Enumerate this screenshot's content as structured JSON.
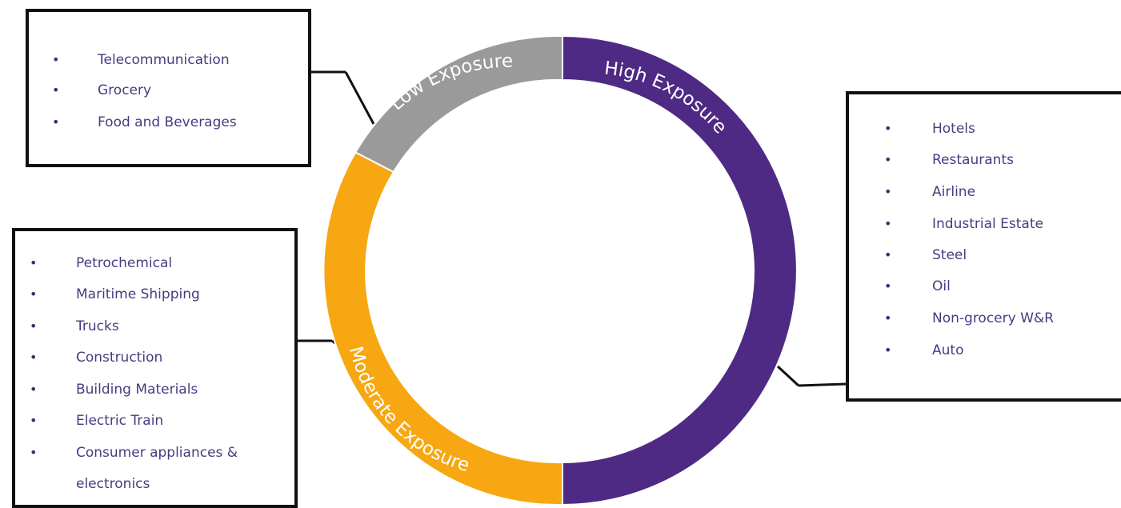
{
  "segments": {
    "low": {
      "label": "Low Exposure",
      "color": "#9a9a9a"
    },
    "moderate": {
      "label": "Moderate Exposure",
      "color": "#f7a712"
    },
    "high": {
      "label": "High Exposure",
      "color": "#4e2a84"
    }
  },
  "boxes": {
    "low": {
      "items": [
        "Telecommunication",
        "Grocery",
        "Food and Beverages"
      ]
    },
    "moderate": {
      "items": [
        "Petrochemical",
        "Maritime Shipping",
        "Trucks",
        "Construction",
        "Building Materials",
        "Electric Train",
        "Consumer appliances &",
        "electronics"
      ]
    },
    "high": {
      "items": [
        "Hotels",
        "Restaurants",
        "Airline",
        "Industrial Estate",
        "Steel",
        "Oil",
        "Non-grocery W&R",
        "Auto"
      ]
    }
  },
  "colors": {
    "bullet_text": "#4b3a80",
    "segment_label_text": "#ffffff",
    "box_border": "#111111"
  }
}
